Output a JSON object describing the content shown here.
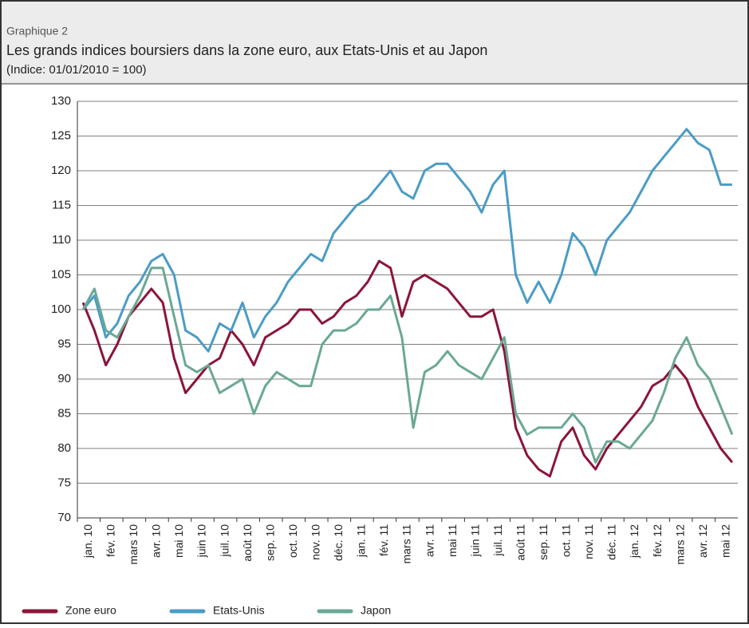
{
  "header": "Graphique 2",
  "chart_data": {
    "type": "line",
    "title": "Les grands indices boursiers dans la zone euro, aux Etats-Unis et au Japon",
    "subtitle": "(Indice: 01/01/2010 = 100)",
    "categories": [
      "jan. 10",
      null,
      "fév. 10",
      null,
      "mars 10",
      null,
      "avr. 10",
      null,
      "mai 10",
      null,
      "juin 10",
      null,
      "juil. 10",
      null,
      "août 10",
      null,
      "sep. 10",
      null,
      "oct. 10",
      null,
      "nov. 10",
      null,
      "déc. 10",
      null,
      "jan. 11",
      null,
      "fév. 11",
      null,
      "mars 11",
      null,
      "avr. 11",
      null,
      "mai 11",
      null,
      "juin 11",
      null,
      "juil. 11",
      null,
      "août 11",
      null,
      "sep. 11",
      null,
      "oct. 11",
      null,
      "nov. 11",
      null,
      "déc. 11",
      null,
      "jan. 12",
      null,
      "fév. 12",
      null,
      "mars 12",
      null,
      "avr. 12",
      null,
      "mai 12",
      null
    ],
    "series": [
      {
        "name": "Zone euro",
        "color": "#8b1538",
        "values": [
          101,
          97,
          92,
          95,
          99,
          101,
          103,
          101,
          93,
          88,
          90,
          92,
          93,
          97,
          95,
          92,
          96,
          97,
          98,
          100,
          100,
          98,
          99,
          101,
          102,
          104,
          107,
          106,
          99,
          104,
          105,
          104,
          103,
          101,
          99,
          99,
          100,
          94,
          83,
          79,
          77,
          76,
          81,
          83,
          79,
          77,
          80,
          82,
          84,
          86,
          89,
          90,
          92,
          90,
          86,
          83,
          80,
          78
        ]
      },
      {
        "name": "Etats-Unis",
        "color": "#4a9cc8",
        "values": [
          100,
          102,
          96,
          98,
          102,
          104,
          107,
          108,
          105,
          97,
          96,
          94,
          98,
          97,
          101,
          96,
          99,
          101,
          104,
          106,
          108,
          107,
          111,
          113,
          115,
          116,
          118,
          120,
          117,
          116,
          120,
          121,
          121,
          119,
          117,
          114,
          118,
          120,
          105,
          101,
          104,
          101,
          105,
          111,
          109,
          105,
          110,
          112,
          114,
          117,
          120,
          122,
          124,
          126,
          124,
          123,
          118,
          118
        ]
      },
      {
        "name": "Japon",
        "color": "#6aa896",
        "values": [
          100,
          103,
          97,
          96,
          99,
          102,
          106,
          106,
          99,
          92,
          91,
          92,
          88,
          89,
          90,
          85,
          89,
          91,
          90,
          89,
          89,
          95,
          97,
          97,
          98,
          100,
          100,
          102,
          96,
          83,
          91,
          92,
          94,
          92,
          91,
          90,
          93,
          96,
          85,
          82,
          83,
          83,
          83,
          85,
          83,
          78,
          81,
          81,
          80,
          82,
          84,
          88,
          93,
          96,
          92,
          90,
          86,
          82
        ]
      }
    ],
    "ylim": [
      70,
      130
    ],
    "yticks": [
      70,
      75,
      80,
      85,
      90,
      95,
      100,
      105,
      110,
      115,
      120,
      125,
      130
    ],
    "grid": true
  }
}
